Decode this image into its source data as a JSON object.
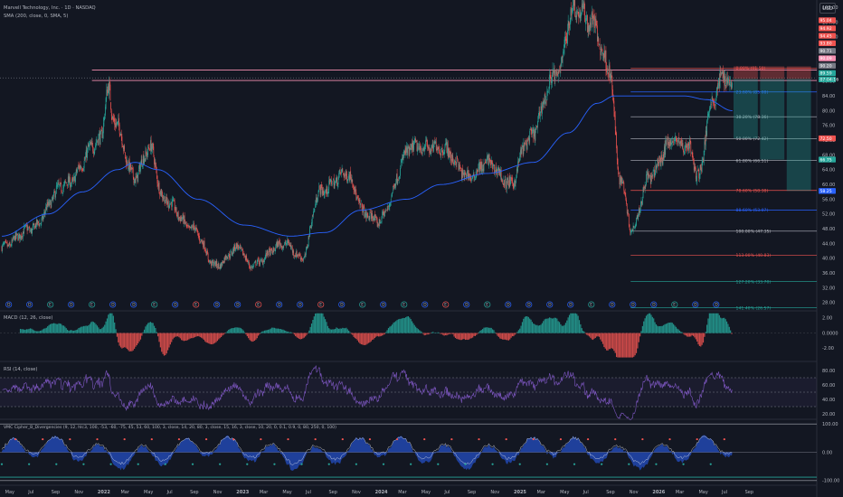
{
  "header": {
    "symbol_line": "Marvell Technology, Inc. · 1D · NASDAQ",
    "sma_label": "SMA (200, close, 0, SMA, 5)",
    "currency_button": "USD"
  },
  "colors": {
    "bg": "#131722",
    "up": "#26a69a",
    "down": "#ef5350",
    "sma": "#2962ff",
    "macd_up": "#26a69a",
    "macd_down": "#ef5350",
    "rsi": "#7e57c2",
    "grid": "#1e222d"
  },
  "chart_data": [
    {
      "type": "candlestick",
      "name": "price",
      "title": "Marvell Technology, Inc. · 1D · NASDAQ",
      "y_ticks": [
        28.0,
        32.0,
        36.0,
        40.0,
        44.0,
        48.0,
        52.0,
        56.0,
        60.0,
        64.0,
        68.0,
        72.0,
        76.0,
        80.0,
        84.0,
        88.0,
        92.0,
        96.0,
        100.0,
        104.0,
        108.0
      ],
      "y_tick_labels": [
        "28.00",
        "32.00",
        "36.00",
        "40.00",
        "44.00",
        "48.00",
        "52.00",
        "56.00",
        "60.00",
        "64.00",
        "68.00",
        "72.00",
        "76.00",
        "80.00",
        "84.00",
        "88.00",
        "92.00",
        "96.00",
        "100.00",
        "104.00",
        "108.00"
      ],
      "ylim": [
        26,
        110
      ],
      "x_labels": [
        "May",
        "Jul",
        "Sep",
        "Nov",
        "2022",
        "Mar",
        "May",
        "Jul",
        "Sep",
        "Nov",
        "2023",
        "Mar",
        "May",
        "Jul",
        "Sep",
        "Nov",
        "2024",
        "Mar",
        "May",
        "Jul",
        "Sep",
        "Nov",
        "2025",
        "Mar",
        "May",
        "Jul",
        "Sep",
        "Nov",
        "2026",
        "Mar",
        "May",
        "Jul",
        "Sep"
      ],
      "series_anchor_points": [
        {
          "t": 0.0,
          "v": 43
        },
        {
          "t": 2.5,
          "v": 48
        },
        {
          "t": 5.5,
          "v": 60
        },
        {
          "t": 8.5,
          "v": 72
        },
        {
          "t": 9.2,
          "v": 86
        },
        {
          "t": 9.6,
          "v": 78
        },
        {
          "t": 11.5,
          "v": 62
        },
        {
          "t": 12.8,
          "v": 70
        },
        {
          "t": 14,
          "v": 56
        },
        {
          "t": 16.5,
          "v": 48
        },
        {
          "t": 18.5,
          "v": 38
        },
        {
          "t": 20.5,
          "v": 43
        },
        {
          "t": 21.5,
          "v": 38
        },
        {
          "t": 24.5,
          "v": 44
        },
        {
          "t": 26,
          "v": 40
        },
        {
          "t": 27.5,
          "v": 58
        },
        {
          "t": 29.8,
          "v": 63
        },
        {
          "t": 31.5,
          "v": 52
        },
        {
          "t": 32.5,
          "v": 50
        },
        {
          "t": 35.5,
          "v": 70
        },
        {
          "t": 38,
          "v": 70
        },
        {
          "t": 40.5,
          "v": 62
        },
        {
          "t": 42,
          "v": 66
        },
        {
          "t": 44,
          "v": 60
        },
        {
          "t": 45.5,
          "v": 72
        },
        {
          "t": 48,
          "v": 90
        },
        {
          "t": 49.5,
          "v": 108
        },
        {
          "t": 51,
          "v": 104
        },
        {
          "t": 52.5,
          "v": 92
        },
        {
          "t": 53.5,
          "v": 62
        },
        {
          "t": 54.5,
          "v": 48
        },
        {
          "t": 56,
          "v": 62
        },
        {
          "t": 58,
          "v": 72
        },
        {
          "t": 59.5,
          "v": 70
        },
        {
          "t": 60.2,
          "v": 62
        },
        {
          "t": 61.5,
          "v": 83
        },
        {
          "t": 62.5,
          "v": 90
        },
        {
          "t": 63.2,
          "v": 86
        }
      ],
      "sma200_anchor_points": [
        {
          "t": 0.0,
          "v": 46
        },
        {
          "t": 4,
          "v": 52
        },
        {
          "t": 7,
          "v": 58
        },
        {
          "t": 10,
          "v": 64
        },
        {
          "t": 11.5,
          "v": 66
        },
        {
          "t": 13.5,
          "v": 64
        },
        {
          "t": 17,
          "v": 56
        },
        {
          "t": 21,
          "v": 49
        },
        {
          "t": 25,
          "v": 46
        },
        {
          "t": 28,
          "v": 47
        },
        {
          "t": 31,
          "v": 53
        },
        {
          "t": 35,
          "v": 56
        },
        {
          "t": 38,
          "v": 60
        },
        {
          "t": 42,
          "v": 63
        },
        {
          "t": 46,
          "v": 66
        },
        {
          "t": 49,
          "v": 74
        },
        {
          "t": 51.5,
          "v": 82
        },
        {
          "t": 53,
          "v": 84
        },
        {
          "t": 56,
          "v": 84
        },
        {
          "t": 59,
          "v": 84
        },
        {
          "t": 61,
          "v": 83
        },
        {
          "t": 63.2,
          "v": 80
        }
      ],
      "horizontal_lines": [
        {
          "value": 91.0,
          "color": "#f48fb1"
        },
        {
          "value": 88.2,
          "color": "#f48fb1"
        },
        {
          "value": 88.9,
          "color": "#9598a1"
        }
      ],
      "fib_levels": [
        {
          "label": "0.00% (91.50)",
          "value": 91.5,
          "color": "#ef5350"
        },
        {
          "label": "23.60% (85.08)",
          "value": 85.08,
          "color": "#2962ff"
        },
        {
          "label": "38.20% (78.36)",
          "value": 78.36,
          "color": "#b2b5be"
        },
        {
          "label": "50.00% (72.42)",
          "value": 72.42,
          "color": "#b2b5be"
        },
        {
          "label": "61.80% (66.51)",
          "value": 66.51,
          "color": "#b2b5be"
        },
        {
          "label": "78.60% (58.38)",
          "value": 58.38,
          "color": "#ef5350"
        },
        {
          "label": "88.60% (53.07)",
          "value": 53.07,
          "color": "#2962ff"
        },
        {
          "label": "100.00% (47.35)",
          "value": 47.35,
          "color": "#b2b5be"
        },
        {
          "label": "113.00% (40.83)",
          "value": 40.83,
          "color": "#ef5350"
        },
        {
          "label": "127.20% (33.70)",
          "value": 33.7,
          "color": "#26a69a"
        },
        {
          "label": "141.40% (26.57)",
          "value": 26.57,
          "color": "#26a69a"
        }
      ],
      "price_tags": [
        {
          "label": "95.04",
          "value": 104.5,
          "color": "#ef5350"
        },
        {
          "label": "94.92",
          "value": 102.3,
          "color": "#ef5350"
        },
        {
          "label": "94.45",
          "value": 100.3,
          "color": "#ef5350"
        },
        {
          "label": "93.80",
          "value": 98.3,
          "color": "#ef5350"
        },
        {
          "label": "90.71",
          "value": 96.2,
          "color": "#787b86"
        },
        {
          "label": "90.09",
          "value": 94.2,
          "color": "#f48fb1"
        },
        {
          "label": "90.20",
          "value": 92.2,
          "color": "#787b86"
        },
        {
          "label": "89.59",
          "value": 90.2,
          "color": "#26a69a"
        },
        {
          "label": "07:04:16",
          "value": 88.5,
          "color": "#26a69a"
        },
        {
          "label": "72.50",
          "value": 72.5,
          "color": "#ef5350"
        },
        {
          "label": "66.75",
          "value": 66.75,
          "color": "#26a69a"
        },
        {
          "label": "58.25",
          "value": 58.25,
          "color": "#2962ff"
        }
      ],
      "positions": [
        {
          "t_start": 63.3,
          "t_end": 65.4,
          "entry": 88.6,
          "stop": 92.0,
          "target": 72.5
        },
        {
          "t_start": 65.6,
          "t_end": 67.7,
          "entry": 88.6,
          "stop": 92.0,
          "target": 66.75
        },
        {
          "t_start": 67.9,
          "t_end": 70.0,
          "entry": 88.6,
          "stop": 92.0,
          "target": 58.25
        }
      ],
      "events": [
        "D",
        "D",
        "E",
        "D",
        "E",
        "D",
        "D",
        "E",
        "D",
        "E",
        "D",
        "D",
        "E",
        "D",
        "D",
        "E",
        "D",
        "E",
        "D",
        "E",
        "D",
        "E",
        "D",
        "E",
        "D",
        "D",
        "D",
        "D",
        "E",
        "D",
        "D",
        "D",
        "E",
        "D",
        "D"
      ]
    },
    {
      "type": "histogram",
      "name": "macd",
      "title": "MACD (12, 26, close)",
      "y_ticks": [
        2.0,
        0.0,
        -2.0
      ],
      "y_tick_labels": [
        "2.00",
        "0.0000",
        "-2.00"
      ],
      "ylim": [
        -3.5,
        2.8
      ]
    },
    {
      "type": "line",
      "name": "rsi",
      "title": "RSI (14, close)",
      "y_ticks": [
        80,
        60,
        40,
        20
      ],
      "y_tick_labels": [
        "80.00",
        "60.00",
        "40.00",
        "20.00"
      ],
      "ylim": [
        15,
        90
      ],
      "bands": [
        70,
        50,
        30
      ]
    },
    {
      "type": "area",
      "name": "wavetrend",
      "title": "VMC Cipher_B_Divergencies (9, 12, hlc3, 100, -53, -60, -75, 45, 53, 60, 100, 3, close, 14, 20, 80, 3, close, 15, 16, 3, close, 10, 20, 0, 0.1, 0.9, 0, 80, 250, 0, 100)",
      "y_ticks": [
        100,
        0,
        -100
      ],
      "y_tick_labels": [
        "100.00",
        "0.00",
        "-100.00"
      ],
      "ylim": [
        -110,
        110
      ]
    }
  ]
}
